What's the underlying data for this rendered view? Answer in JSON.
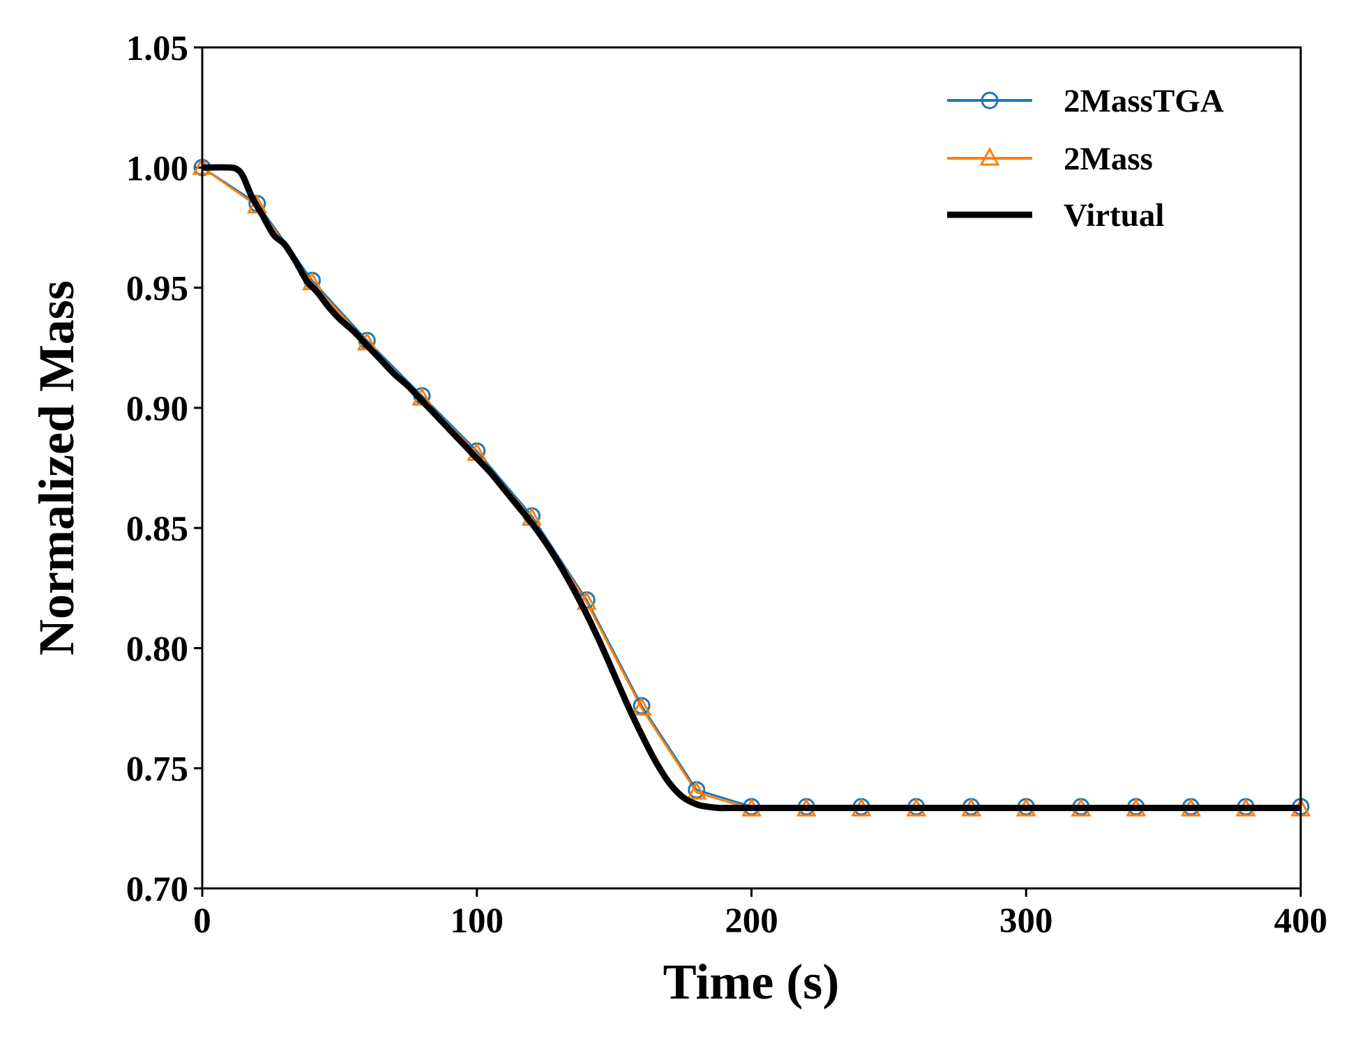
{
  "chart_data": {
    "type": "line",
    "title": "",
    "xlabel": "Time (s)",
    "ylabel": "Normalized Mass",
    "xlim": [
      0,
      400
    ],
    "ylim": [
      0.7,
      1.05
    ],
    "xticks": [
      0,
      100,
      200,
      300,
      400
    ],
    "xtick_labels": [
      "0",
      "100",
      "200",
      "300",
      "400"
    ],
    "yticks": [
      0.7,
      0.75,
      0.8,
      0.85,
      0.9,
      0.95,
      1.0,
      1.05
    ],
    "ytick_labels": [
      "0.70",
      "0.75",
      "0.80",
      "0.85",
      "0.90",
      "0.95",
      "1.00",
      "1.05"
    ],
    "grid": false,
    "legend_position": "top-right",
    "series": [
      {
        "name": "2MassTGA",
        "color": "#1f77b4",
        "marker": "circle",
        "x": [
          0,
          20,
          40,
          60,
          80,
          100,
          120,
          140,
          160,
          180,
          200,
          220,
          240,
          260,
          280,
          300,
          320,
          340,
          360,
          380,
          400
        ],
        "values": [
          1.0,
          0.985,
          0.953,
          0.928,
          0.905,
          0.882,
          0.855,
          0.82,
          0.776,
          0.741,
          0.734,
          0.734,
          0.734,
          0.734,
          0.734,
          0.734,
          0.734,
          0.734,
          0.734,
          0.734,
          0.734
        ]
      },
      {
        "name": "2Mass",
        "color": "#ff7f0e",
        "marker": "triangle",
        "x": [
          0,
          20,
          40,
          60,
          80,
          100,
          120,
          140,
          160,
          180,
          200,
          220,
          240,
          260,
          280,
          300,
          320,
          340,
          360,
          380,
          400
        ],
        "values": [
          1.0,
          0.984,
          0.952,
          0.927,
          0.904,
          0.881,
          0.854,
          0.819,
          0.775,
          0.74,
          0.733,
          0.733,
          0.733,
          0.733,
          0.733,
          0.733,
          0.733,
          0.733,
          0.733,
          0.733,
          0.733
        ]
      },
      {
        "name": "Virtual",
        "color": "#000000",
        "marker": "none",
        "x": [
          0,
          10,
          13,
          15,
          18,
          22,
          26,
          30,
          34,
          38,
          42,
          46,
          50,
          55,
          60,
          65,
          70,
          75,
          80,
          85,
          90,
          95,
          100,
          105,
          110,
          115,
          120,
          125,
          130,
          135,
          140,
          145,
          150,
          155,
          160,
          165,
          170,
          175,
          180,
          184,
          188,
          192,
          196,
          200,
          250,
          300,
          350,
          400
        ],
        "values": [
          1.0,
          1.0,
          0.999,
          0.996,
          0.988,
          0.98,
          0.972,
          0.968,
          0.961,
          0.953,
          0.948,
          0.942,
          0.937,
          0.932,
          0.926,
          0.92,
          0.914,
          0.909,
          0.903,
          0.897,
          0.891,
          0.885,
          0.879,
          0.873,
          0.866,
          0.859,
          0.852,
          0.844,
          0.835,
          0.825,
          0.814,
          0.802,
          0.789,
          0.776,
          0.764,
          0.753,
          0.744,
          0.738,
          0.735,
          0.734,
          0.7335,
          0.7335,
          0.7335,
          0.7335,
          0.7335,
          0.7335,
          0.7335,
          0.7335
        ]
      }
    ]
  }
}
